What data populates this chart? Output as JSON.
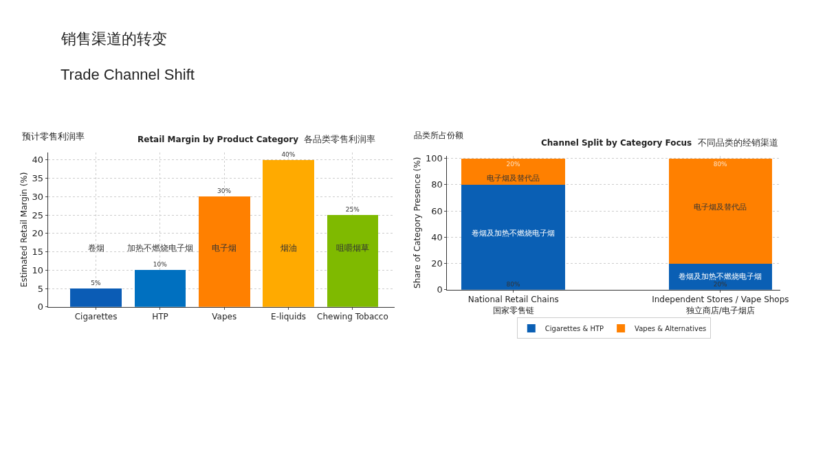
{
  "chart_data": [
    {
      "type": "bar",
      "title": "Retail Margin by Product Category",
      "subtitle": "各品类零售利润率",
      "ylabel": "Estimated Retail Margin (%)",
      "categories": [
        "Cigarettes",
        "HTP",
        "Vapes",
        "E-liquids",
        "Chewing Tobacco"
      ],
      "values": [
        5,
        10,
        30,
        40,
        25
      ],
      "colors": [
        "#0b5cb5",
        "#0070c0",
        "#ff8000",
        "#ffaa00",
        "#7fba00"
      ],
      "value_labels": [
        "5%",
        "10%",
        "30%",
        "40%",
        "25%"
      ],
      "ylim": [
        0,
        42
      ],
      "yticks": [
        0,
        5,
        10,
        15,
        20,
        25,
        30,
        35,
        40
      ],
      "grid": true,
      "annotations": [
        "销售渠道的转变",
        "Trade Channel Shift",
        "预计零售利润率",
        "卷烟",
        "加热不燃烧电子烟",
        "电子烟",
        "烟油",
        "咀嚼烟草"
      ]
    },
    {
      "type": "bar",
      "stacked": true,
      "title": "Channel Split by Category Focus",
      "subtitle": "不同品类的经销渠道",
      "ylabel": "Share of Category Presence (%)",
      "categories": [
        "National Retail Chains\n国家零售链",
        "Independent Stores / Vape Shops\n独立商店/电子烟店"
      ],
      "series": [
        {
          "name": "Cigarettes & HTP",
          "color": "#0a5fb4",
          "values": [
            80,
            20
          ],
          "value_labels": [
            "80%",
            "20%"
          ]
        },
        {
          "name": "Vapes & Alternatives",
          "color": "#ff8000",
          "values": [
            20,
            80
          ],
          "value_labels": [
            "20%",
            "80%"
          ]
        }
      ],
      "ylim": [
        0,
        102
      ],
      "yticks": [
        0,
        20,
        40,
        60,
        80,
        100
      ],
      "grid": true,
      "legend": "bottom",
      "annotations": [
        "品类所占份额",
        "电子烟及替代品",
        "卷烟及加热不燃烧电子烟",
        "电子烟及替代品",
        "卷烟及加热不燃烧电子烟"
      ]
    }
  ]
}
